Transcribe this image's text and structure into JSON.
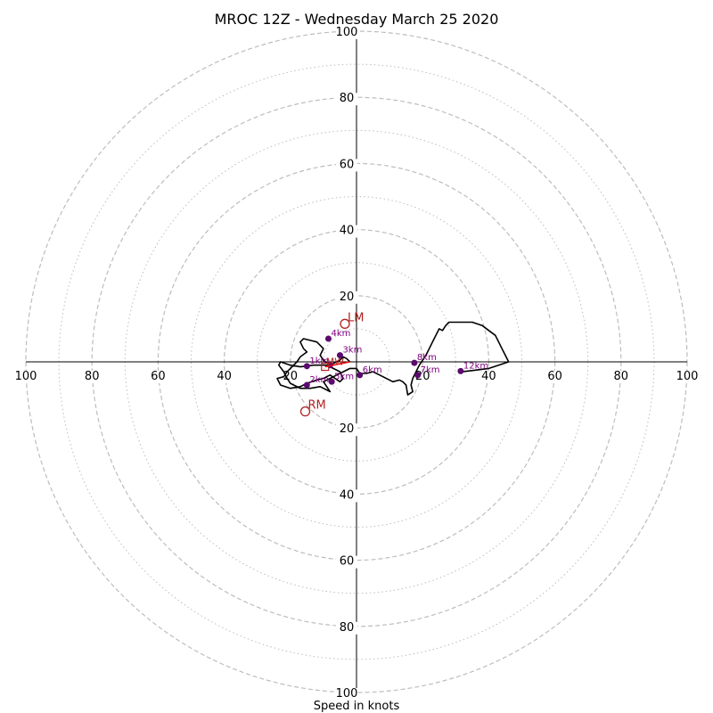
{
  "chart_data": {
    "type": "hodograph",
    "title": "MROC 12Z - Wednesday March 25 2020",
    "xlabel": "Speed in knots",
    "xlim": [
      -100,
      100
    ],
    "ylim": [
      -100,
      100
    ],
    "rings_major": [
      20,
      40,
      60,
      80,
      100
    ],
    "rings_minor": [
      10,
      30,
      50,
      70,
      90
    ],
    "tick_labels": {
      "x_left": [
        "100",
        "80",
        "60",
        "40",
        "20"
      ],
      "x_right": [
        "20",
        "40",
        "60",
        "80",
        "100"
      ],
      "y_top": [
        "20",
        "40",
        "60",
        "80",
        "100"
      ],
      "y_bottom": [
        "20",
        "40",
        "60",
        "80",
        "100"
      ]
    },
    "grid": true,
    "colors": {
      "trace": "#000000",
      "height_marker": "#5b0a6e",
      "height_label": "#800080",
      "storm_motion": "#b22222",
      "mean_wind": "#ff0000",
      "grid": "#bdbdbd"
    },
    "trace": [
      [
        -2,
        0
      ],
      [
        -3,
        1
      ],
      [
        -4,
        1.5
      ],
      [
        -5,
        0.5
      ],
      [
        -8,
        -1
      ],
      [
        -10,
        0.5
      ],
      [
        -11,
        2
      ],
      [
        -10,
        4
      ],
      [
        -11,
        5
      ],
      [
        -12,
        6
      ],
      [
        -14,
        6.5
      ],
      [
        -16,
        7
      ],
      [
        -17,
        6
      ],
      [
        -16,
        4
      ],
      [
        -15,
        3
      ],
      [
        -17,
        1.5
      ],
      [
        -18,
        0
      ],
      [
        -19,
        -1
      ],
      [
        -20,
        -2
      ],
      [
        -21,
        -3
      ],
      [
        -22,
        -4.5
      ],
      [
        -24,
        -5
      ],
      [
        -23,
        -7
      ],
      [
        -20,
        -8
      ],
      [
        -17,
        -7.5
      ],
      [
        -15,
        -6.5
      ],
      [
        -12,
        -5.5
      ],
      [
        -10,
        -5
      ],
      [
        -8,
        -4
      ],
      [
        -5,
        -6
      ],
      [
        -4,
        -5
      ],
      [
        -5,
        -3
      ],
      [
        -7,
        -2
      ],
      [
        -9,
        -1
      ],
      [
        -13,
        -1
      ],
      [
        -17,
        -1.5
      ],
      [
        -20,
        -1
      ],
      [
        -23,
        0
      ],
      [
        -23.5,
        -1
      ],
      [
        -22,
        -3
      ],
      [
        -21,
        -5
      ],
      [
        -20,
        -6.5
      ],
      [
        -17,
        -8
      ],
      [
        -14,
        -8
      ],
      [
        -11,
        -7.5
      ],
      [
        -8,
        -9
      ],
      [
        -9,
        -7.5
      ],
      [
        -10,
        -6
      ],
      [
        -8,
        -5
      ],
      [
        -6,
        -4
      ],
      [
        -4,
        -3
      ],
      [
        -2,
        -2
      ],
      [
        0,
        -2
      ],
      [
        1,
        -3.5
      ],
      [
        3,
        -3.5
      ],
      [
        5,
        -3
      ],
      [
        7,
        -4
      ],
      [
        9,
        -5
      ],
      [
        11,
        -6
      ],
      [
        13,
        -5.5
      ],
      [
        14,
        -6
      ],
      [
        15,
        -7
      ],
      [
        15.5,
        -10
      ],
      [
        17,
        -9
      ],
      [
        16.5,
        -7
      ],
      [
        17,
        -5
      ],
      [
        18,
        -3
      ],
      [
        19,
        -1
      ],
      [
        20,
        0.5
      ],
      [
        21,
        2
      ],
      [
        22,
        4
      ],
      [
        23,
        6
      ],
      [
        24,
        8
      ],
      [
        25,
        10
      ],
      [
        26,
        9.5
      ],
      [
        27,
        11
      ],
      [
        28,
        12
      ],
      [
        30,
        12
      ],
      [
        32,
        12
      ],
      [
        35,
        12
      ],
      [
        38,
        11
      ],
      [
        40,
        9.5
      ],
      [
        42,
        8
      ],
      [
        43,
        6
      ],
      [
        44,
        4
      ],
      [
        45,
        2
      ],
      [
        46,
        0
      ],
      [
        43,
        -1
      ],
      [
        40,
        -2
      ],
      [
        36,
        -2.5
      ],
      [
        32,
        -3
      ],
      [
        31.5,
        -2.8
      ]
    ],
    "height_markers": [
      {
        "label": "",
        "u": -8,
        "v": -1
      },
      {
        "label": "1km",
        "u": -15,
        "v": -1.3
      },
      {
        "label": "2km",
        "u": -15,
        "v": -7
      },
      {
        "label": "3km",
        "u": -5,
        "v": 2
      },
      {
        "label": "4km",
        "u": -8.5,
        "v": 7
      },
      {
        "label": "5km",
        "u": -7.5,
        "v": -6
      },
      {
        "label": "6km",
        "u": 1,
        "v": -4
      },
      {
        "label": "7km",
        "u": 18.5,
        "v": -4
      },
      {
        "label": "8km",
        "u": 17.5,
        "v": -0.3
      },
      {
        "label": "12km",
        "u": 31.5,
        "v": -2.8
      }
    ],
    "storm_motions": [
      {
        "label": "LM",
        "u": -3.5,
        "v": 11.5
      },
      {
        "label": "RM",
        "u": -15.5,
        "v": -15
      }
    ],
    "mean_wind": {
      "label": "MW",
      "u": -9.5,
      "v": -1.5,
      "to_u": -2,
      "to_v": 0
    }
  }
}
